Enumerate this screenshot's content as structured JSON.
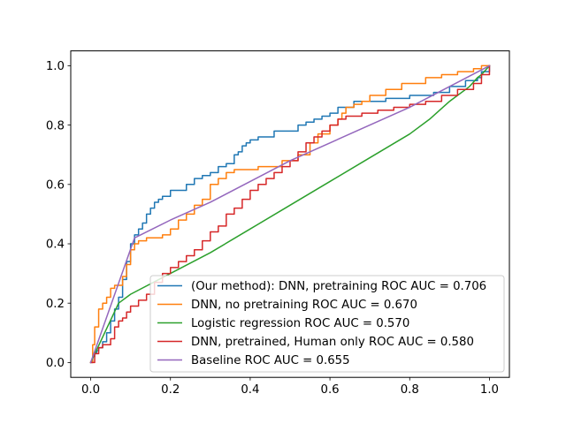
{
  "chart_data": {
    "type": "line",
    "title": "",
    "xlabel": "",
    "ylabel": "",
    "xlim": [
      -0.05,
      1.05
    ],
    "ylim": [
      -0.05,
      1.05
    ],
    "xticks": [
      0.0,
      0.2,
      0.4,
      0.6,
      0.8,
      1.0
    ],
    "yticks": [
      0.0,
      0.2,
      0.4,
      0.6,
      0.8,
      1.0
    ],
    "xtick_labels": [
      "0.0",
      "0.2",
      "0.4",
      "0.6",
      "0.8",
      "1.0"
    ],
    "ytick_labels": [
      "0.0",
      "0.2",
      "0.4",
      "0.6",
      "0.8",
      "1.0"
    ],
    "grid": false,
    "legend_position": "lower-right",
    "series": [
      {
        "name": "(Our method): DNN, pretraining ROC AUC = 0.706",
        "color": "#1f77b4",
        "step": true,
        "x": [
          0.0,
          0.005,
          0.01,
          0.015,
          0.02,
          0.03,
          0.04,
          0.05,
          0.06,
          0.07,
          0.08,
          0.09,
          0.1,
          0.11,
          0.12,
          0.13,
          0.14,
          0.15,
          0.16,
          0.17,
          0.18,
          0.2,
          0.22,
          0.24,
          0.26,
          0.28,
          0.3,
          0.32,
          0.34,
          0.36,
          0.37,
          0.38,
          0.39,
          0.4,
          0.42,
          0.46,
          0.48,
          0.52,
          0.54,
          0.56,
          0.58,
          0.6,
          0.62,
          0.66,
          0.72,
          0.74,
          0.8,
          0.82,
          0.86,
          0.9,
          0.94,
          0.97,
          0.98,
          1.0
        ],
        "y": [
          0.0,
          0.02,
          0.03,
          0.04,
          0.05,
          0.07,
          0.1,
          0.14,
          0.18,
          0.22,
          0.28,
          0.34,
          0.4,
          0.43,
          0.45,
          0.47,
          0.5,
          0.52,
          0.54,
          0.55,
          0.56,
          0.58,
          0.58,
          0.6,
          0.62,
          0.63,
          0.64,
          0.66,
          0.67,
          0.7,
          0.71,
          0.73,
          0.74,
          0.75,
          0.76,
          0.78,
          0.78,
          0.8,
          0.81,
          0.82,
          0.83,
          0.84,
          0.86,
          0.88,
          0.88,
          0.89,
          0.9,
          0.9,
          0.91,
          0.93,
          0.95,
          0.96,
          0.98,
          1.0
        ]
      },
      {
        "name": "DNN, no pretraining ROC AUC = 0.670",
        "color": "#ff7f0e",
        "step": true,
        "x": [
          0.0,
          0.005,
          0.01,
          0.02,
          0.03,
          0.04,
          0.05,
          0.06,
          0.08,
          0.09,
          0.1,
          0.11,
          0.12,
          0.14,
          0.18,
          0.2,
          0.22,
          0.24,
          0.26,
          0.28,
          0.3,
          0.32,
          0.34,
          0.36,
          0.42,
          0.48,
          0.52,
          0.55,
          0.57,
          0.6,
          0.62,
          0.63,
          0.64,
          0.66,
          0.68,
          0.7,
          0.72,
          0.74,
          0.78,
          0.84,
          0.88,
          0.92,
          0.96,
          0.98,
          1.0
        ],
        "y": [
          0.0,
          0.06,
          0.12,
          0.18,
          0.2,
          0.22,
          0.25,
          0.26,
          0.29,
          0.33,
          0.38,
          0.4,
          0.41,
          0.42,
          0.43,
          0.45,
          0.48,
          0.5,
          0.53,
          0.55,
          0.6,
          0.62,
          0.64,
          0.65,
          0.66,
          0.68,
          0.7,
          0.74,
          0.77,
          0.8,
          0.82,
          0.84,
          0.86,
          0.87,
          0.88,
          0.9,
          0.9,
          0.92,
          0.94,
          0.96,
          0.97,
          0.98,
          0.99,
          1.0,
          1.0
        ]
      },
      {
        "name": "Logistic regression ROC AUC = 0.570",
        "color": "#2ca02c",
        "step": false,
        "x": [
          0.0,
          0.07,
          0.1,
          0.2,
          0.3,
          0.4,
          0.5,
          0.6,
          0.7,
          0.8,
          0.85,
          0.9,
          0.95,
          0.97,
          0.98,
          1.0
        ],
        "y": [
          0.0,
          0.2,
          0.23,
          0.3,
          0.37,
          0.45,
          0.53,
          0.61,
          0.69,
          0.77,
          0.82,
          0.88,
          0.93,
          0.96,
          0.97,
          1.0
        ]
      },
      {
        "name": "DNN, pretrained, Human only ROC AUC = 0.580",
        "color": "#d62728",
        "step": true,
        "x": [
          0.0,
          0.01,
          0.02,
          0.03,
          0.05,
          0.06,
          0.07,
          0.08,
          0.09,
          0.1,
          0.12,
          0.14,
          0.16,
          0.18,
          0.2,
          0.22,
          0.24,
          0.26,
          0.28,
          0.3,
          0.32,
          0.34,
          0.36,
          0.38,
          0.4,
          0.42,
          0.44,
          0.46,
          0.48,
          0.5,
          0.52,
          0.54,
          0.56,
          0.58,
          0.6,
          0.62,
          0.64,
          0.68,
          0.72,
          0.76,
          0.8,
          0.84,
          0.88,
          0.92,
          0.96,
          0.98,
          1.0
        ],
        "y": [
          0.0,
          0.03,
          0.05,
          0.06,
          0.08,
          0.12,
          0.14,
          0.15,
          0.17,
          0.19,
          0.21,
          0.23,
          0.27,
          0.3,
          0.32,
          0.34,
          0.36,
          0.38,
          0.41,
          0.44,
          0.46,
          0.5,
          0.52,
          0.55,
          0.58,
          0.6,
          0.62,
          0.64,
          0.66,
          0.68,
          0.71,
          0.74,
          0.76,
          0.78,
          0.8,
          0.82,
          0.83,
          0.84,
          0.85,
          0.86,
          0.87,
          0.88,
          0.9,
          0.92,
          0.94,
          0.97,
          1.0
        ]
      },
      {
        "name": "Baseline ROC AUC = 0.655",
        "color": "#9467bd",
        "step": false,
        "x": [
          0.0,
          0.11,
          0.2,
          0.3,
          0.4,
          0.5,
          0.6,
          0.7,
          0.8,
          0.9,
          1.0
        ],
        "y": [
          0.0,
          0.42,
          0.48,
          0.54,
          0.61,
          0.68,
          0.74,
          0.8,
          0.86,
          0.93,
          1.0
        ]
      }
    ]
  }
}
